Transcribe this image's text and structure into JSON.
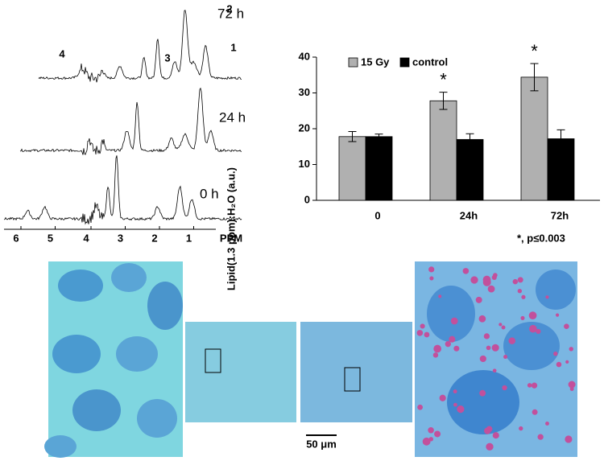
{
  "chart_data": {
    "type": "bar",
    "ylabel": "Lipid(1.3 ppm):H₂O (a.u.)",
    "categories": [
      "0",
      "24h",
      "72h"
    ],
    "series": [
      {
        "name": "15 Gy",
        "color": "#b0b0b0",
        "values": [
          17.8,
          27.8,
          34.4
        ],
        "errors": [
          1.4,
          2.4,
          3.8
        ]
      },
      {
        "name": "control",
        "color": "#000000",
        "values": [
          17.8,
          17.0,
          17.2
        ],
        "errors": [
          0.7,
          1.6,
          2.5
        ]
      }
    ],
    "annotations": [
      "*",
      "*",
      "*, p≤0.003"
    ],
    "ylim": [
      0,
      40
    ],
    "yticks": [
      0,
      10,
      20,
      30,
      40
    ],
    "legend": "top-left"
  },
  "spectra": {
    "time_labels": [
      "72 h",
      "24 h",
      "0 h"
    ],
    "peak_labels": [
      "1",
      "2",
      "3",
      "4"
    ],
    "ppm_ticks": [
      6,
      5,
      4,
      3,
      2,
      1
    ],
    "ppm_label": "PPM"
  },
  "scale_bar": "50 μm"
}
